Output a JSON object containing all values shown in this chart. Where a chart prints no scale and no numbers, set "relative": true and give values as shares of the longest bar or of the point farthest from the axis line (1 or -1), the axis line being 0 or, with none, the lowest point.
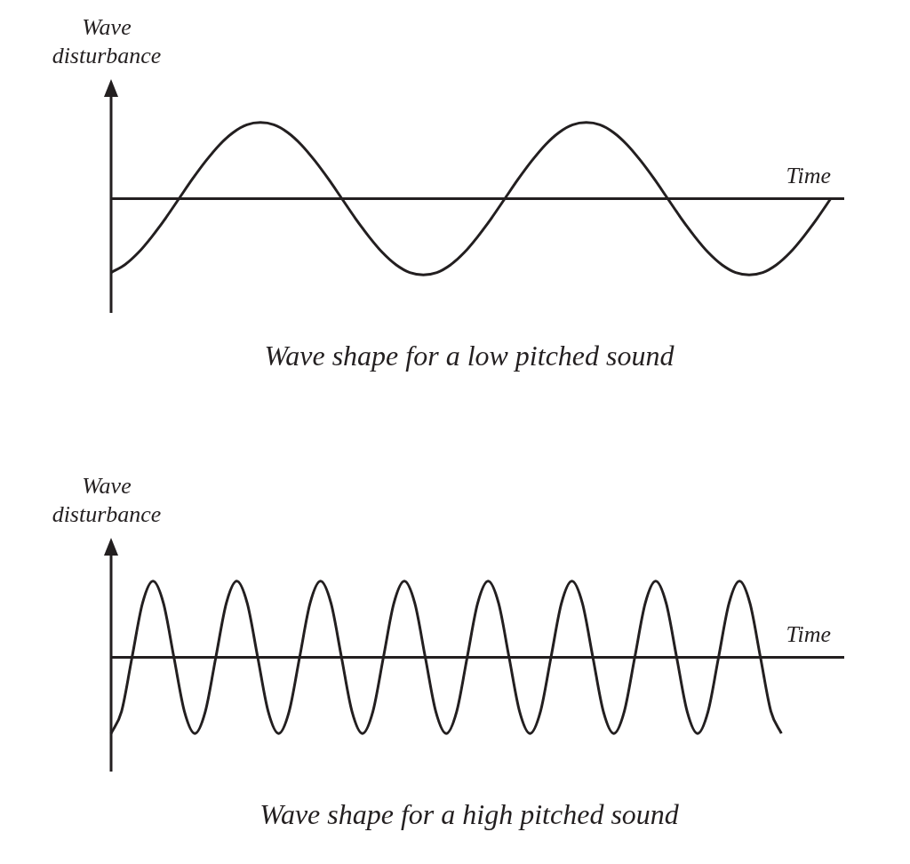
{
  "chart_data": [
    {
      "type": "line",
      "title": "Wave shape for a low pitched sound",
      "xlabel": "Time",
      "ylabel": "Wave disturbance",
      "relative": true,
      "color": "#231f20",
      "categories": [
        null,
        null,
        null,
        null,
        null,
        null,
        null,
        null,
        null,
        null,
        null,
        null,
        null,
        null,
        null,
        null,
        null,
        null,
        null,
        null,
        null,
        null,
        null,
        null,
        null,
        null,
        null,
        null,
        null,
        null,
        null,
        null,
        null,
        null,
        null,
        null,
        null,
        null,
        null,
        null,
        null,
        null,
        null,
        null,
        null,
        null,
        null,
        null,
        null,
        null,
        null,
        null,
        null,
        null,
        null
      ],
      "values": [
        -0.97,
        -0.87,
        -0.71,
        -0.5,
        -0.26,
        0,
        0.26,
        0.5,
        0.71,
        0.87,
        0.97,
        1,
        0.97,
        0.87,
        0.71,
        0.5,
        0.26,
        0,
        -0.26,
        -0.5,
        -0.71,
        -0.87,
        -0.97,
        -1,
        -0.97,
        -0.87,
        -0.71,
        -0.5,
        -0.26,
        0,
        0.26,
        0.5,
        0.71,
        0.87,
        0.97,
        1,
        0.97,
        0.87,
        0.71,
        0.5,
        0.26,
        0,
        -0.26,
        -0.5,
        -0.71,
        -0.87,
        -0.97,
        -1,
        -0.97,
        -0.87,
        -0.71,
        -0.5,
        -0.26,
        0,
        null
      ]
    },
    {
      "type": "line",
      "title": "Wave shape for a high pitched sound",
      "xlabel": "Time",
      "ylabel": "Wave disturbance",
      "relative": true,
      "color": "#231f20",
      "categories": [
        null,
        null,
        null,
        null,
        null,
        null,
        null,
        null,
        null,
        null,
        null,
        null,
        null,
        null,
        null,
        null,
        null,
        null,
        null,
        null,
        null,
        null,
        null,
        null,
        null,
        null,
        null,
        null,
        null,
        null,
        null,
        null,
        null,
        null,
        null,
        null,
        null,
        null,
        null,
        null,
        null,
        null,
        null,
        null,
        null,
        null,
        null,
        null,
        null,
        null,
        null,
        null,
        null,
        null,
        null,
        null,
        null,
        null,
        null,
        null,
        null,
        null,
        null,
        null,
        null,
        null,
        null,
        null,
        null,
        null,
        null
      ],
      "values": [
        -1,
        -0.71,
        0,
        0.71,
        1,
        0.71,
        0,
        -0.71,
        -1,
        -0.71,
        0,
        0.71,
        1,
        0.71,
        0,
        -0.71,
        -1,
        -0.71,
        0,
        0.71,
        1,
        0.71,
        0,
        -0.71,
        -1,
        -0.71,
        0,
        0.71,
        1,
        0.71,
        0,
        -0.71,
        -1,
        -0.71,
        0,
        0.71,
        1,
        0.71,
        0,
        -0.71,
        -1,
        -0.71,
        0,
        0.71,
        1,
        0.71,
        0,
        -0.71,
        -1,
        -0.71,
        0,
        0.71,
        1,
        0.71,
        0,
        -0.71,
        -1,
        -0.71,
        0,
        0.71,
        1,
        0.71,
        0,
        -0.71,
        -1,
        null,
        null,
        null,
        null,
        null,
        null
      ]
    }
  ]
}
